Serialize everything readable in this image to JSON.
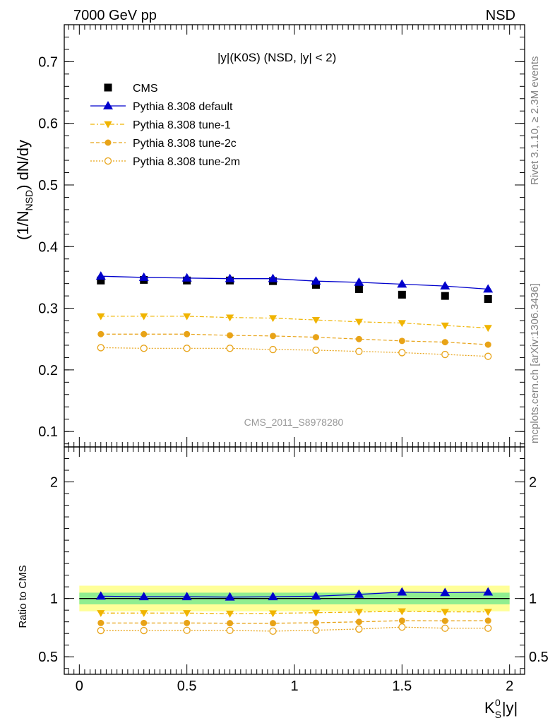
{
  "header": {
    "left": "7000 GeV pp",
    "right": "NSD"
  },
  "side_text": {
    "top": "Rivet 3.1.10, ≥ 2.3M events",
    "bottom": "mcplots.cern.ch [arXiv:1306.3436]"
  },
  "watermark": "CMS_2011_S8978280",
  "colors": {
    "default": "#0000cc",
    "tune": "#e8a317",
    "tune1": "#f0b400",
    "band_inner": "#90ee90",
    "band_outer": "#ffff99"
  },
  "chart_data": [
    {
      "type": "scatter",
      "title": "|y|(K0S) (NSD, |y| < 2)",
      "ylabel": "(1/N_NSD) dN/dy",
      "xlabel": "K_S^0 |y|",
      "xlim": [
        -0.07,
        2.07
      ],
      "ylim": [
        0.075,
        0.76
      ],
      "yticks": [
        "0.1",
        "0.2",
        "0.3",
        "0.4",
        "0.5",
        "0.6",
        "0.7"
      ],
      "x": [
        0.1,
        0.3,
        0.5,
        0.7,
        0.9,
        1.1,
        1.3,
        1.5,
        1.7,
        1.9
      ],
      "legend_position": "top-left",
      "series": [
        {
          "name": "CMS",
          "marker": "square",
          "values": [
            0.345,
            0.346,
            0.345,
            0.345,
            0.344,
            0.338,
            0.331,
            0.322,
            0.32,
            0.315
          ]
        },
        {
          "name": "Pythia 8.308 default",
          "marker": "triangle-up",
          "values": [
            0.352,
            0.35,
            0.349,
            0.348,
            0.348,
            0.344,
            0.342,
            0.339,
            0.336,
            0.331
          ]
        },
        {
          "name": "Pythia 8.308 tune-1",
          "marker": "triangle-down",
          "values": [
            0.287,
            0.287,
            0.287,
            0.285,
            0.284,
            0.281,
            0.278,
            0.276,
            0.272,
            0.268
          ]
        },
        {
          "name": "Pythia 8.308 tune-2c",
          "marker": "circle",
          "values": [
            0.258,
            0.258,
            0.258,
            0.256,
            0.255,
            0.253,
            0.25,
            0.247,
            0.245,
            0.241
          ]
        },
        {
          "name": "Pythia 8.308 tune-2m",
          "marker": "open-circle",
          "values": [
            0.236,
            0.235,
            0.235,
            0.235,
            0.233,
            0.232,
            0.23,
            0.228,
            0.225,
            0.222
          ]
        }
      ]
    },
    {
      "type": "line",
      "ylabel": "Ratio to CMS",
      "xlabel": "K_S^0 |y|",
      "ylim": [
        0.35,
        2.3
      ],
      "yticks": [
        "0.5",
        "1",
        "2"
      ],
      "xticks": [
        "0",
        "0.5",
        "1",
        "1.5",
        "2"
      ],
      "x": [
        0.1,
        0.3,
        0.5,
        0.7,
        0.9,
        1.1,
        1.3,
        1.5,
        1.7,
        1.9
      ],
      "band_inner": [
        0.95,
        1.05
      ],
      "band_outer": [
        0.89,
        1.11
      ],
      "series": [
        {
          "name": "Pythia 8.308 default",
          "values": [
            1.02,
            1.015,
            1.015,
            1.012,
            1.015,
            1.02,
            1.035,
            1.055,
            1.05,
            1.055
          ]
        },
        {
          "name": "Pythia 8.308 tune-1",
          "values": [
            0.875,
            0.875,
            0.875,
            0.87,
            0.873,
            0.878,
            0.884,
            0.89,
            0.885,
            0.885
          ]
        },
        {
          "name": "Pythia 8.308 tune-2c",
          "values": [
            0.79,
            0.79,
            0.79,
            0.788,
            0.788,
            0.792,
            0.8,
            0.81,
            0.808,
            0.81
          ]
        },
        {
          "name": "Pythia 8.308 tune-2m",
          "values": [
            0.725,
            0.725,
            0.727,
            0.726,
            0.72,
            0.728,
            0.738,
            0.755,
            0.745,
            0.745
          ]
        }
      ]
    }
  ]
}
